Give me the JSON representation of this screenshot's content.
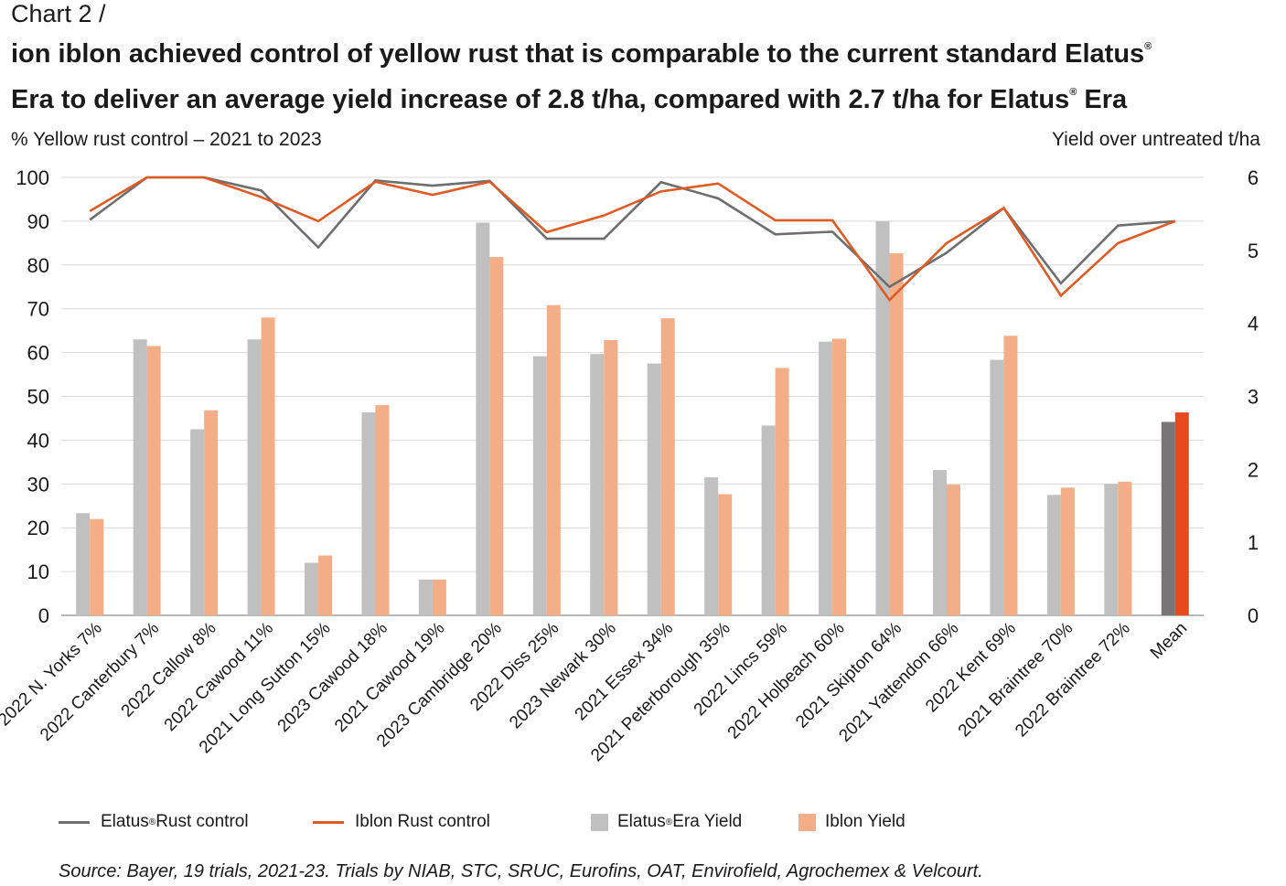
{
  "header": {
    "chart_number": "Chart 2 /",
    "title_line1_a": "ion iblon achieved control of yellow rust that is comparable to the current standard Elatus",
    "title_line2_a": "Era to deliver an average yield increase of 2.8 t/ha, compared with 2.7 t/ha for Elatus",
    "title_line2_b": " Era",
    "reg_mark": "®"
  },
  "source_note": "Source: Bayer, 19 trials, 2021-23. Trials by NIAB, STC, SRUC, Eurofins, OAT, Envirofield, Agrochemex & Velcourt.",
  "legend": {
    "elatus_rust_a": "Elatus",
    "elatus_rust_b": " Rust control",
    "iblon_rust": "Iblon Rust control",
    "elatus_yield_a": "Elatus",
    "elatus_yield_b": " Era Yield",
    "iblon_yield": "Iblon Yield"
  },
  "colors": {
    "elatus": "#c0c0c0",
    "iblon": "#f4ae87",
    "elatus_mean": "#777575",
    "iblon_mean": "#e8491e",
    "elatus_line": "#6e6e6e",
    "iblon_line": "#e05a23",
    "grid": "#d9d9d9"
  },
  "chart_data": {
    "type": "bar+line",
    "ylabel_left": "% Yellow rust control – 2021 to 2023",
    "ylabel_right": "Yield over untreated t/ha",
    "ylim_left": [
      0,
      100
    ],
    "yticks_left": [
      0,
      10,
      20,
      30,
      40,
      50,
      60,
      70,
      80,
      90,
      100
    ],
    "ylim_right": [
      0,
      6
    ],
    "yticks_right": [
      0,
      1,
      2,
      3,
      4,
      5,
      6
    ],
    "grid": true,
    "legend_position": "bottom",
    "categories": [
      "2022 N. Yorks 7%",
      "2022 Canterbury 7%",
      "2022 Callow 8%",
      "2022 Cawood 11%",
      "2021 Long Sutton 15%",
      "2023 Cawood 18%",
      "2021 Cawood 19%",
      "2023 Cambridge 20%",
      "2022 Diss 25%",
      "2023 Newark 30%",
      "2021 Essex 34%",
      "2021 Peterborough 35%",
      "2022 Lincs 59%",
      "2022 Holbeach 60%",
      "2021 Skipton 64%",
      "2021 Yattendon 66%",
      "2022 Kent 69%",
      "2021 Braintree 70%",
      "2022 Braintree 72%",
      "Mean"
    ],
    "series": [
      {
        "name": "Elatus® Era Yield",
        "type": "bar",
        "axis": "right",
        "values": [
          1.4,
          3.78,
          2.55,
          3.78,
          0.72,
          2.78,
          0.49,
          5.38,
          3.55,
          3.58,
          3.45,
          1.89,
          2.6,
          3.75,
          5.4,
          1.99,
          3.5,
          1.65,
          1.8,
          2.65
        ]
      },
      {
        "name": "Iblon Yield",
        "type": "bar",
        "axis": "right",
        "values": [
          1.32,
          3.69,
          2.81,
          4.08,
          0.82,
          2.88,
          0.49,
          4.91,
          4.25,
          3.77,
          4.07,
          1.66,
          3.39,
          3.79,
          4.96,
          1.79,
          3.83,
          1.75,
          1.83,
          2.78
        ]
      },
      {
        "name": "Elatus® Rust control",
        "type": "line",
        "axis": "left",
        "values": [
          90.3,
          100,
          100,
          97,
          84,
          99.3,
          98.1,
          99.2,
          86,
          86,
          98.9,
          95.2,
          87,
          87.6,
          75,
          82.8,
          93,
          75.8,
          89,
          90
        ]
      },
      {
        "name": "Iblon Rust control",
        "type": "line",
        "axis": "left",
        "values": [
          92.3,
          100,
          100,
          95.5,
          90,
          99,
          96,
          99,
          87.5,
          91.3,
          96.8,
          98.6,
          90.2,
          90.2,
          72,
          85,
          93,
          73,
          85,
          90
        ]
      }
    ]
  }
}
